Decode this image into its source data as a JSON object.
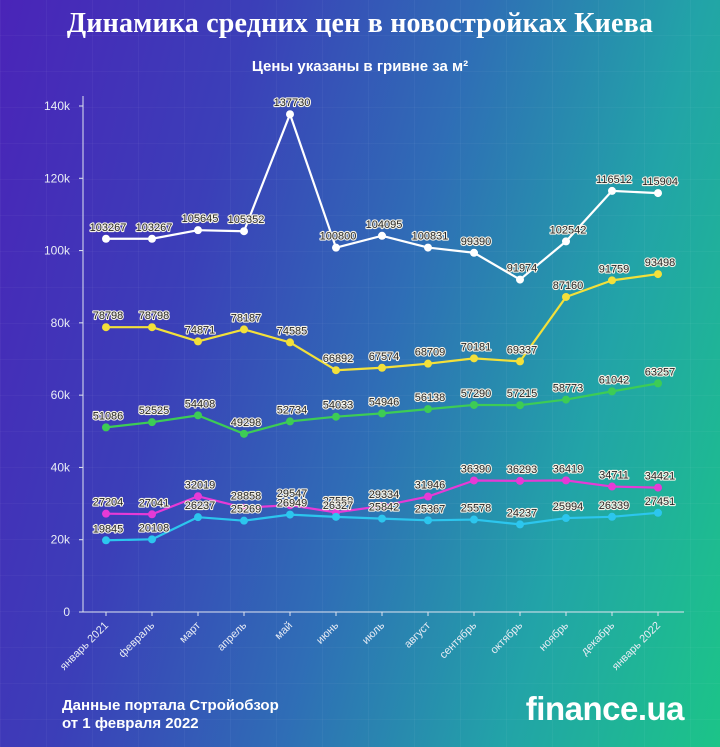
{
  "header": {
    "title": "Динамика средних цен в новостройках Киева",
    "subtitle": "Цены указаны в гривне за м²"
  },
  "chart_data": {
    "type": "line",
    "categories": [
      "январь 2021",
      "февраль",
      "март",
      "апрель",
      "май",
      "июнь",
      "июль",
      "август",
      "сентябрь",
      "октябрь",
      "ноябрь",
      "декабрь",
      "январь 2022"
    ],
    "ylim": [
      0,
      140000
    ],
    "ytick_values": [
      0,
      20000,
      40000,
      60000,
      80000,
      100000,
      120000,
      140000
    ],
    "ytick_labels": [
      "0",
      "20k",
      "40k",
      "60k",
      "80k",
      "100k",
      "120k",
      "140k"
    ],
    "grid": false,
    "legend": "none",
    "data_labels": true,
    "series": [
      {
        "color": "#ffffff",
        "values": [
          103267,
          103267,
          105645,
          105352,
          137730,
          100800,
          104095,
          100831,
          99390,
          91974,
          102542,
          116512,
          115904
        ]
      },
      {
        "color": "#f3e03a",
        "values": [
          78798,
          78798,
          74871,
          78187,
          74585,
          66892,
          67574,
          68709,
          70181,
          69337,
          87160,
          91759,
          93498
        ]
      },
      {
        "color": "#3dcc55",
        "values": [
          51086,
          52525,
          54408,
          49298,
          52734,
          54033,
          54946,
          56138,
          57290,
          57215,
          58773,
          61042,
          63257
        ]
      },
      {
        "color": "#e63ad6",
        "values": [
          27204,
          27041,
          32019,
          28858,
          29547,
          27559,
          29334,
          31946,
          36390,
          36293,
          36419,
          34711,
          34421
        ]
      },
      {
        "color": "#2cc6ee",
        "values": [
          19845,
          20108,
          26237,
          25269,
          26949,
          26327,
          25842,
          25367,
          25578,
          24237,
          25994,
          26339,
          27451
        ]
      }
    ]
  },
  "footer": {
    "source_line1": "Данные портала Стройобзор",
    "source_line2": "от 1 февраля 2022",
    "logo": "finance.ua"
  }
}
